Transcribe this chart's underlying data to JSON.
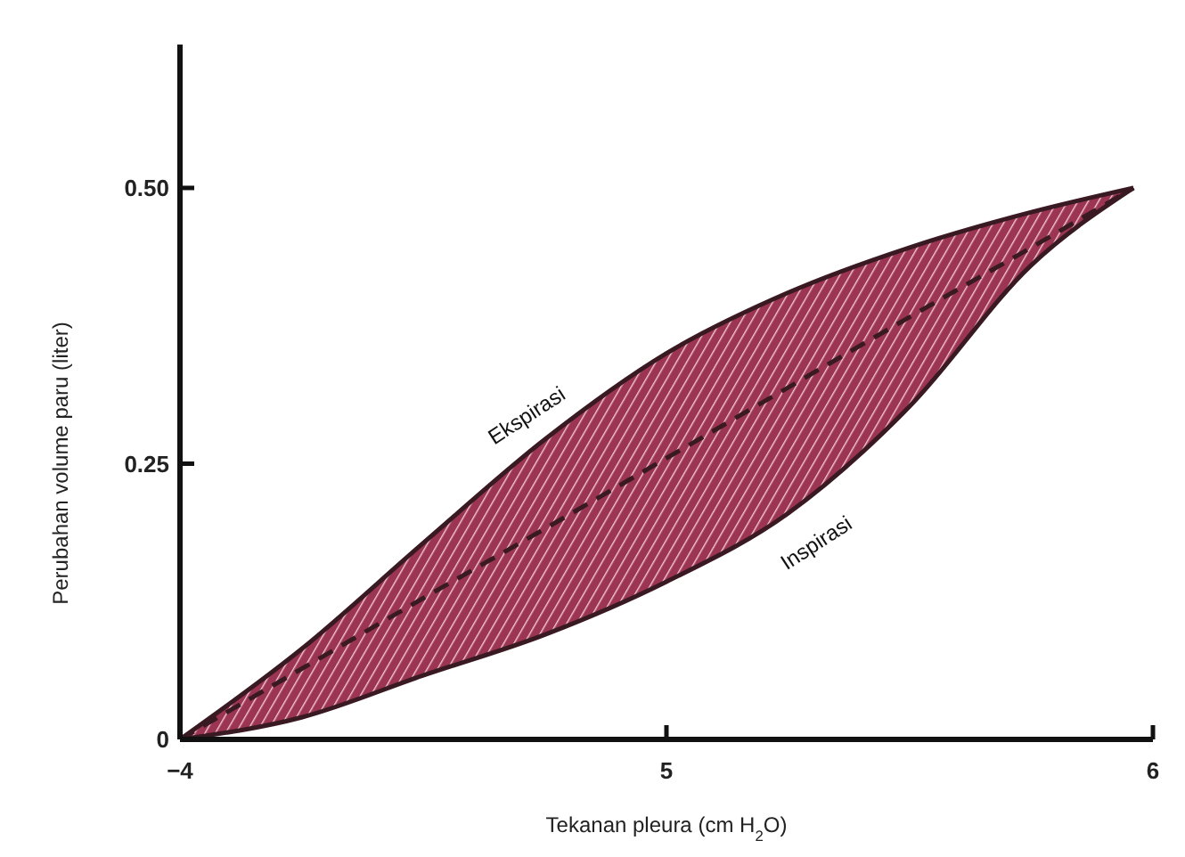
{
  "chart_data": {
    "type": "line",
    "xlabel": "Tekanan pleura (cm H$_{2}$O)",
    "ylabel": "Perubahan volume paru (liter)",
    "x": [
      -4,
      -4.25,
      -4.5,
      -4.75,
      -5,
      -5.25,
      -5.5,
      -5.75,
      -5.96
    ],
    "series": [
      {
        "color": "#3a1a22",
        "line_style": "dashed",
        "values": [
          0,
          0.064,
          0.128,
          0.191,
          0.255,
          0.319,
          0.383,
          0.446,
          0.5
        ],
        "lower": [
          0,
          0.02,
          0.058,
          0.095,
          0.143,
          0.205,
          0.302,
          0.43,
          0.5
        ],
        "upper": [
          0,
          0.082,
          0.178,
          0.272,
          0.35,
          0.405,
          0.446,
          0.478,
          0.5
        ]
      }
    ],
    "annotations": [
      "Ekspirasi",
      "Inspirasi"
    ],
    "xlim": [
      -4,
      -6
    ],
    "xticks": [
      {
        "value": -4,
        "label": "−4"
      },
      {
        "value": -5,
        "label": "5"
      },
      {
        "value": -6,
        "label": "6"
      }
    ],
    "ylim": [
      0,
      0.63
    ],
    "yticks": [
      0,
      0.25,
      {
        "value": 0.5,
        "label": "0.50"
      }
    ]
  }
}
